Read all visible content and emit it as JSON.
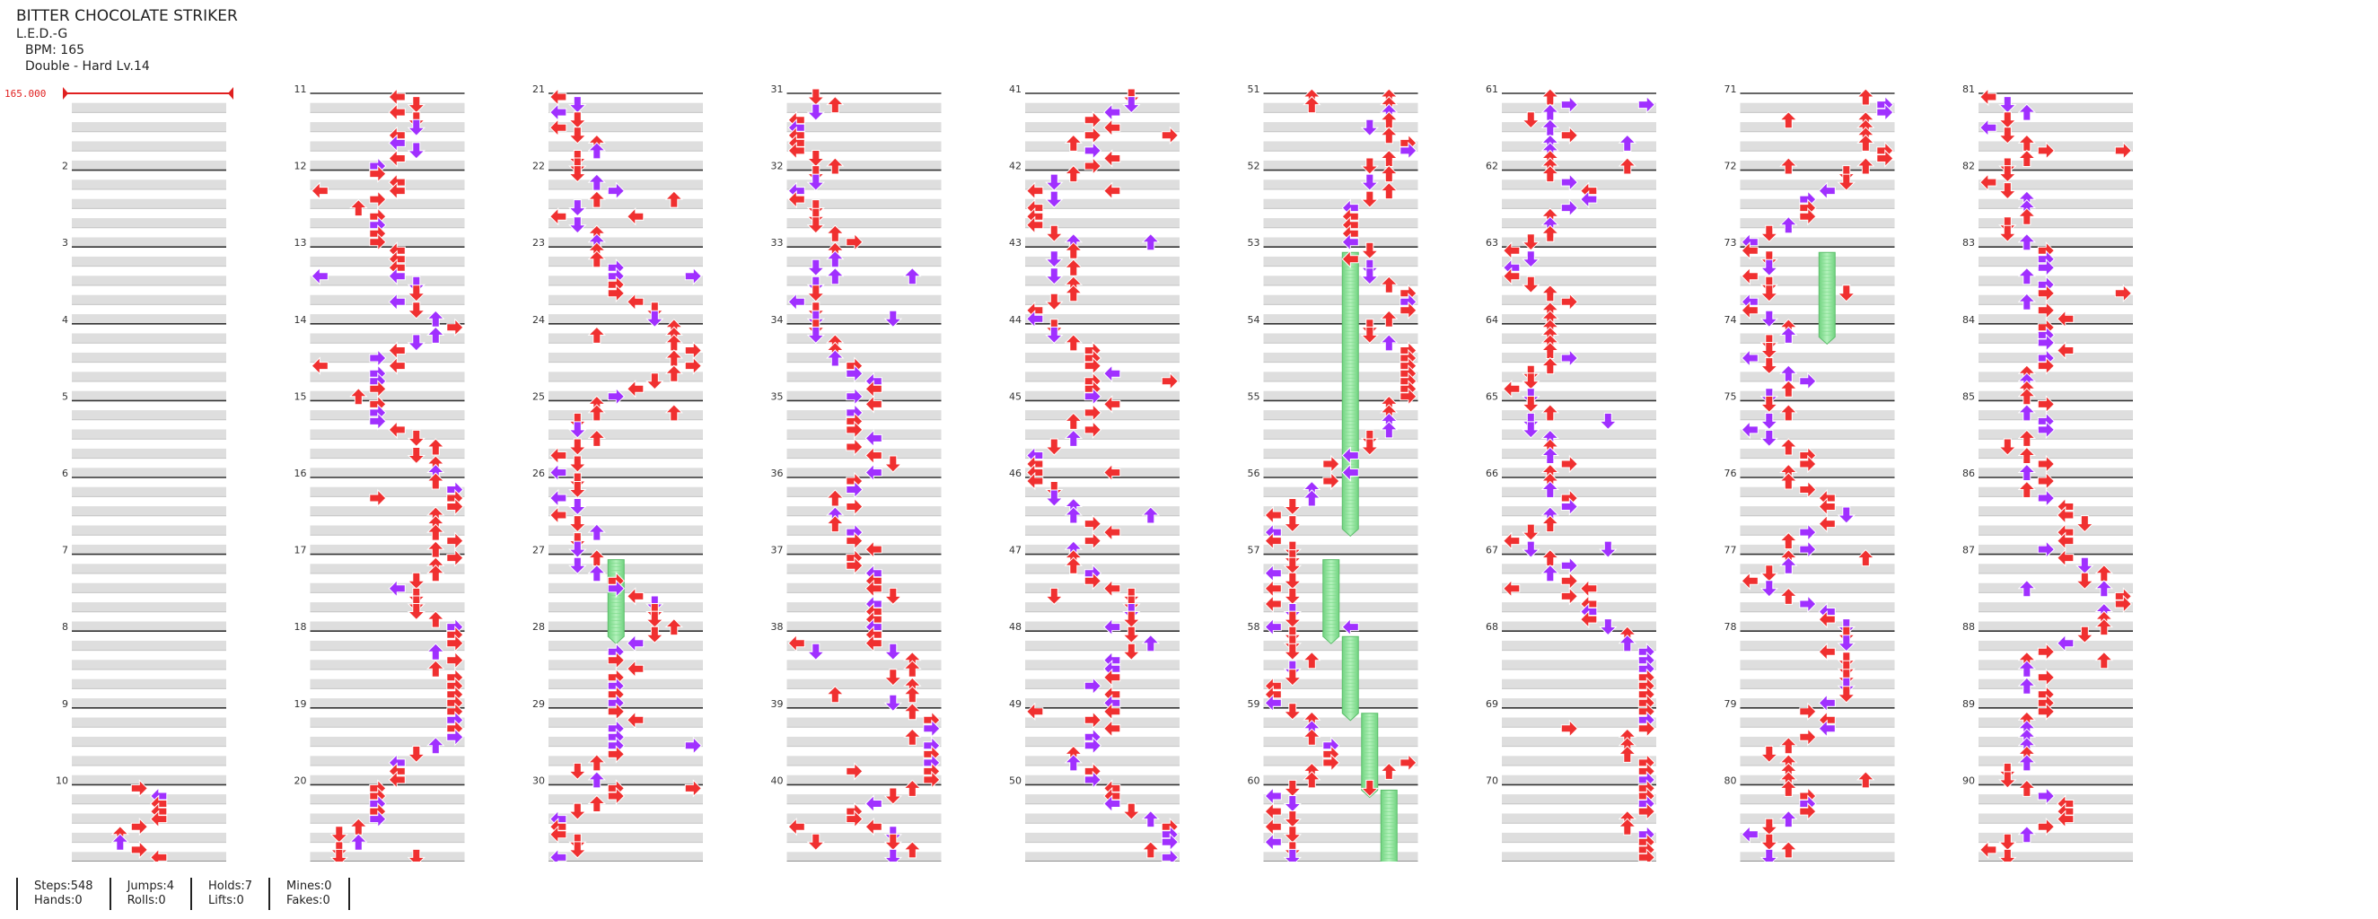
{
  "song": {
    "title": "BITTER CHOCOLATE STRIKER",
    "artist": "L.E.D.-G",
    "bpm_label": "BPM: 165",
    "difficulty_label": "Double - Hard Lv.14"
  },
  "bpm_marker": "165.000",
  "colors": {
    "red": "#f03030",
    "purple": "#a030ff",
    "hold": "#8ee89a"
  },
  "stats": {
    "steps": "Steps:548",
    "hands": "Hands:0",
    "jumps": "Jumps:4",
    "rolls": "Rolls:0",
    "holds": "Holds:7",
    "lifts": "Lifts:0",
    "mines": "Mines:0",
    "fakes": "Fakes:0"
  },
  "chart_data": {
    "type": "table",
    "measure_labels": [
      "2",
      "3",
      "4",
      "5",
      "6",
      "7",
      "8",
      "9",
      "10",
      "11",
      "12",
      "13",
      "14",
      "15",
      "16",
      "17",
      "18",
      "19",
      "20",
      "21",
      "22",
      "23",
      "24",
      "25",
      "26",
      "27",
      "28",
      "29",
      "30",
      "31",
      "32",
      "33",
      "34",
      "35",
      "36",
      "37",
      "38",
      "39",
      "40",
      "41",
      "42",
      "43",
      "44",
      "45",
      "46",
      "47",
      "48",
      "49",
      "50",
      "51",
      "52",
      "53",
      "54",
      "55",
      "56",
      "57",
      "58",
      "59",
      "60",
      "61",
      "62",
      "63",
      "64",
      "65",
      "66",
      "67",
      "68",
      "69",
      "70",
      "71",
      "72",
      "73",
      "74",
      "75",
      "76",
      "77",
      "78",
      "79",
      "80",
      "81",
      "82",
      "83",
      "84",
      "85",
      "86",
      "87",
      "88",
      "89",
      "90"
    ],
    "columns_of_measures": 9,
    "measures_per_column": 10,
    "panels": 8,
    "arrow_directions_by_panel": [
      "left",
      "down",
      "up",
      "right",
      "left",
      "down",
      "up",
      "right"
    ],
    "hold_count": 7
  }
}
